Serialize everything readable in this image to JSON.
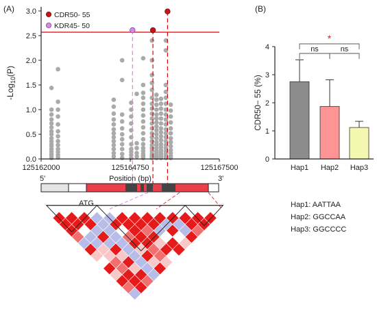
{
  "panels": {
    "a_label": "(A)",
    "b_label": "(B)"
  },
  "colors": {
    "cdr": "#cc1111",
    "kdr": "#dd88dd",
    "kdr_edge": "#7744aa",
    "points": "#aaaaaa",
    "threshold": "#dd0000",
    "exon": "#e8404a",
    "dark_block": "#444444",
    "ld_strong": "#e51a1a",
    "ld_medium": "#f07070",
    "ld_light": "#f8c8c8",
    "ld_blue": "#b8bce8",
    "hap1": "#8c8c8c",
    "hap2": "#ff9494",
    "hap3": "#f4f7b0",
    "sig_star": "#dd2222"
  },
  "gene": {
    "label_5prime": "5'",
    "label_3prime": "3'",
    "atg_label": "ATG"
  },
  "haplotypes": [
    {
      "name": "Hap1",
      "seq_label": "Hap1: AATTAA"
    },
    {
      "name": "Hap2",
      "seq_label": "Hap2: GGCCAA"
    },
    {
      "name": "Hap3",
      "seq_label": "Hap3: GGCCCC"
    }
  ],
  "chart_data": [
    {
      "type": "scatter",
      "title": "",
      "xlabel": "Position (bp)",
      "ylabel": "-Log10(P)",
      "ylabel_display": {
        "base": "-Log",
        "sub": "10",
        "rest": "(P)"
      },
      "xlim": [
        125162000,
        125167500
      ],
      "ylim": [
        0,
        3.0
      ],
      "x_ticks": [
        125162000,
        125164750,
        125167500
      ],
      "y_ticks": [
        "0.0",
        "0.5",
        "1.0",
        "1.5",
        "2.0",
        "2.5",
        "3.0"
      ],
      "threshold": 2.57,
      "grid": false,
      "legend": {
        "position": "top-left",
        "entries": [
          {
            "name": "CDR50- 55",
            "color": "#cc1111"
          },
          {
            "name": "KDR45- 50",
            "color": "#dd88dd"
          }
        ]
      },
      "highlights": [
        {
          "series": "CDR50- 55",
          "x": 125165450,
          "y": 2.61
        },
        {
          "series": "CDR50- 55",
          "x": 125165900,
          "y": 2.99
        },
        {
          "series": "KDR45- 50",
          "x": 125164820,
          "y": 2.61
        }
      ],
      "columns": [
        {
          "x": 125162320,
          "y": [
            0.02,
            0.06,
            0.1,
            0.15,
            0.2,
            0.26,
            0.3,
            0.36,
            0.42,
            0.5,
            0.56,
            0.64,
            0.72,
            0.8,
            0.9,
            1.0,
            1.44
          ]
        },
        {
          "x": 125162520,
          "y": [
            0.03,
            0.08,
            0.14,
            0.2,
            0.28,
            0.36,
            0.46,
            0.56,
            0.7,
            0.86,
            1.0,
            1.16,
            1.82
          ]
        },
        {
          "x": 125164240,
          "y": [
            0.05,
            0.12,
            0.2,
            0.28,
            0.36,
            0.44,
            0.52,
            0.6,
            0.7,
            0.8,
            0.92,
            1.06,
            1.2
          ]
        },
        {
          "x": 125164500,
          "y": [
            0.02,
            0.1,
            0.2,
            0.3,
            0.4,
            0.5,
            0.62,
            0.76,
            0.9,
            1.6,
            2.0
          ]
        },
        {
          "x": 125164780,
          "y": [
            0.02,
            0.08,
            0.14,
            0.2,
            0.3,
            0.44,
            0.58,
            0.72,
            0.86,
            1.0,
            1.14
          ]
        },
        {
          "x": 125164950,
          "y": [
            0.05,
            0.12,
            0.22,
            0.32,
            1.32
          ]
        },
        {
          "x": 125165150,
          "y": [
            0.02,
            0.06,
            0.1,
            0.16,
            0.22,
            0.3,
            0.4,
            0.52,
            0.64,
            0.76,
            0.88,
            1.0,
            1.12,
            1.24,
            1.34,
            1.5,
            2.04
          ]
        },
        {
          "x": 125165420,
          "y": [
            0.02,
            0.04,
            0.06,
            0.1,
            0.16,
            0.22,
            0.28,
            0.36,
            0.44,
            0.52,
            0.62,
            0.72,
            0.82,
            0.92,
            1.02,
            1.12,
            1.24,
            1.4,
            1.54,
            1.7,
            2.0,
            2.4
          ]
        },
        {
          "x": 125165560,
          "y": [
            0.02,
            0.05,
            0.08,
            0.12,
            0.16,
            0.22,
            0.28,
            0.34,
            0.42,
            0.5,
            0.58,
            0.66,
            0.74,
            0.82,
            0.9,
            1.0,
            1.1,
            1.2,
            1.3
          ]
        },
        {
          "x": 125165700,
          "y": [
            0.02,
            0.06,
            0.1,
            0.14,
            0.18,
            0.24,
            0.3,
            0.38,
            0.46,
            0.54,
            0.62,
            0.72,
            0.82,
            0.92,
            1.02,
            1.12,
            1.22
          ]
        },
        {
          "x": 125165850,
          "y": [
            0.02,
            0.06,
            0.1,
            0.16,
            0.22,
            0.28,
            0.36,
            0.44,
            0.52,
            0.6,
            0.7,
            0.8,
            0.9,
            1.0,
            1.12,
            1.24,
            1.36,
            1.5,
            2.2,
            2.4
          ]
        },
        {
          "x": 125166000,
          "y": [
            0.02,
            0.06,
            0.12,
            0.18,
            0.26,
            0.34,
            0.42,
            0.52,
            0.62,
            0.74,
            0.86,
            0.98,
            1.1
          ]
        }
      ]
    },
    {
      "type": "bar",
      "title": "",
      "xlabel": "",
      "ylabel": "CDR50− 55 (%)",
      "categories": [
        "Hap1",
        "Hap2",
        "Hap3"
      ],
      "values": [
        2.75,
        1.87,
        1.12
      ],
      "errors": [
        0.78,
        0.95,
        0.22
      ],
      "ylim": [
        0,
        4
      ],
      "y_ticks": [
        "0",
        "1",
        "2",
        "3",
        "4"
      ],
      "grid": false,
      "significance": [
        {
          "pair": [
            "Hap1",
            "Hap2"
          ],
          "label": "ns"
        },
        {
          "pair": [
            "Hap2",
            "Hap3"
          ],
          "label": "ns"
        },
        {
          "pair": [
            "Hap1",
            "Hap3"
          ],
          "label": "*"
        }
      ]
    }
  ]
}
